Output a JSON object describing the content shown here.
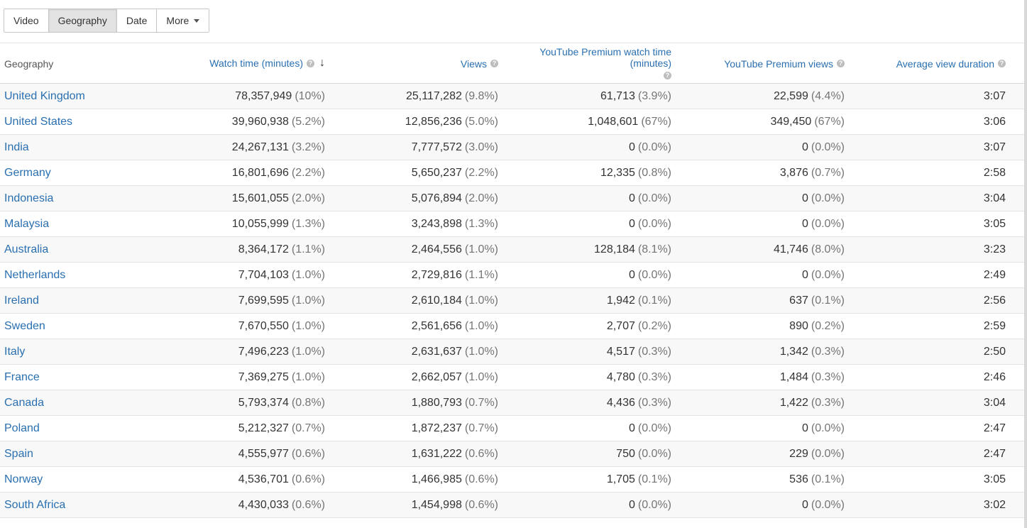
{
  "tabs": [
    {
      "label": "Video",
      "active": false
    },
    {
      "label": "Geography",
      "active": true
    },
    {
      "label": "Date",
      "active": false
    },
    {
      "label": "More",
      "active": false
    }
  ],
  "table": {
    "columns": [
      {
        "label": "Geography",
        "help": false,
        "sort": ""
      },
      {
        "label": "Watch time (minutes)",
        "help": true,
        "sort": "↓"
      },
      {
        "label": "Views",
        "help": true,
        "sort": ""
      },
      {
        "label": "YouTube Premium watch time (minutes)",
        "help": true,
        "sort": ""
      },
      {
        "label": "YouTube Premium views",
        "help": true,
        "sort": ""
      },
      {
        "label": "Average view duration",
        "help": true,
        "sort": ""
      }
    ],
    "rows": [
      {
        "geo": "United Kingdom",
        "watch": "78,357,949",
        "watch_pct": "(10%)",
        "views": "25,117,282",
        "views_pct": "(9.8%)",
        "prem_watch": "61,713",
        "prem_watch_pct": "(3.9%)",
        "prem_views": "22,599",
        "prem_views_pct": "(4.4%)",
        "avg": "3:07"
      },
      {
        "geo": "United States",
        "watch": "39,960,938",
        "watch_pct": "(5.2%)",
        "views": "12,856,236",
        "views_pct": "(5.0%)",
        "prem_watch": "1,048,601",
        "prem_watch_pct": "(67%)",
        "prem_views": "349,450",
        "prem_views_pct": "(67%)",
        "avg": "3:06"
      },
      {
        "geo": "India",
        "watch": "24,267,131",
        "watch_pct": "(3.2%)",
        "views": "7,777,572",
        "views_pct": "(3.0%)",
        "prem_watch": "0",
        "prem_watch_pct": "(0.0%)",
        "prem_views": "0",
        "prem_views_pct": "(0.0%)",
        "avg": "3:07"
      },
      {
        "geo": "Germany",
        "watch": "16,801,696",
        "watch_pct": "(2.2%)",
        "views": "5,650,237",
        "views_pct": "(2.2%)",
        "prem_watch": "12,335",
        "prem_watch_pct": "(0.8%)",
        "prem_views": "3,876",
        "prem_views_pct": "(0.7%)",
        "avg": "2:58"
      },
      {
        "geo": "Indonesia",
        "watch": "15,601,055",
        "watch_pct": "(2.0%)",
        "views": "5,076,894",
        "views_pct": "(2.0%)",
        "prem_watch": "0",
        "prem_watch_pct": "(0.0%)",
        "prem_views": "0",
        "prem_views_pct": "(0.0%)",
        "avg": "3:04"
      },
      {
        "geo": "Malaysia",
        "watch": "10,055,999",
        "watch_pct": "(1.3%)",
        "views": "3,243,898",
        "views_pct": "(1.3%)",
        "prem_watch": "0",
        "prem_watch_pct": "(0.0%)",
        "prem_views": "0",
        "prem_views_pct": "(0.0%)",
        "avg": "3:05"
      },
      {
        "geo": "Australia",
        "watch": "8,364,172",
        "watch_pct": "(1.1%)",
        "views": "2,464,556",
        "views_pct": "(1.0%)",
        "prem_watch": "128,184",
        "prem_watch_pct": "(8.1%)",
        "prem_views": "41,746",
        "prem_views_pct": "(8.0%)",
        "avg": "3:23"
      },
      {
        "geo": "Netherlands",
        "watch": "7,704,103",
        "watch_pct": "(1.0%)",
        "views": "2,729,816",
        "views_pct": "(1.1%)",
        "prem_watch": "0",
        "prem_watch_pct": "(0.0%)",
        "prem_views": "0",
        "prem_views_pct": "(0.0%)",
        "avg": "2:49"
      },
      {
        "geo": "Ireland",
        "watch": "7,699,595",
        "watch_pct": "(1.0%)",
        "views": "2,610,184",
        "views_pct": "(1.0%)",
        "prem_watch": "1,942",
        "prem_watch_pct": "(0.1%)",
        "prem_views": "637",
        "prem_views_pct": "(0.1%)",
        "avg": "2:56"
      },
      {
        "geo": "Sweden",
        "watch": "7,670,550",
        "watch_pct": "(1.0%)",
        "views": "2,561,656",
        "views_pct": "(1.0%)",
        "prem_watch": "2,707",
        "prem_watch_pct": "(0.2%)",
        "prem_views": "890",
        "prem_views_pct": "(0.2%)",
        "avg": "2:59"
      },
      {
        "geo": "Italy",
        "watch": "7,496,223",
        "watch_pct": "(1.0%)",
        "views": "2,631,637",
        "views_pct": "(1.0%)",
        "prem_watch": "4,517",
        "prem_watch_pct": "(0.3%)",
        "prem_views": "1,342",
        "prem_views_pct": "(0.3%)",
        "avg": "2:50"
      },
      {
        "geo": "France",
        "watch": "7,369,275",
        "watch_pct": "(1.0%)",
        "views": "2,662,057",
        "views_pct": "(1.0%)",
        "prem_watch": "4,780",
        "prem_watch_pct": "(0.3%)",
        "prem_views": "1,484",
        "prem_views_pct": "(0.3%)",
        "avg": "2:46"
      },
      {
        "geo": "Canada",
        "watch": "5,793,374",
        "watch_pct": "(0.8%)",
        "views": "1,880,793",
        "views_pct": "(0.7%)",
        "prem_watch": "4,436",
        "prem_watch_pct": "(0.3%)",
        "prem_views": "1,422",
        "prem_views_pct": "(0.3%)",
        "avg": "3:04"
      },
      {
        "geo": "Poland",
        "watch": "5,212,327",
        "watch_pct": "(0.7%)",
        "views": "1,872,237",
        "views_pct": "(0.7%)",
        "prem_watch": "0",
        "prem_watch_pct": "(0.0%)",
        "prem_views": "0",
        "prem_views_pct": "(0.0%)",
        "avg": "2:47"
      },
      {
        "geo": "Spain",
        "watch": "4,555,977",
        "watch_pct": "(0.6%)",
        "views": "1,631,222",
        "views_pct": "(0.6%)",
        "prem_watch": "750",
        "prem_watch_pct": "(0.0%)",
        "prem_views": "229",
        "prem_views_pct": "(0.0%)",
        "avg": "2:47"
      },
      {
        "geo": "Norway",
        "watch": "4,536,701",
        "watch_pct": "(0.6%)",
        "views": "1,466,985",
        "views_pct": "(0.6%)",
        "prem_watch": "1,705",
        "prem_watch_pct": "(0.1%)",
        "prem_views": "536",
        "prem_views_pct": "(0.1%)",
        "avg": "3:05"
      },
      {
        "geo": "South Africa",
        "watch": "4,430,033",
        "watch_pct": "(0.6%)",
        "views": "1,454,998",
        "views_pct": "(0.6%)",
        "prem_watch": "0",
        "prem_watch_pct": "(0.0%)",
        "prem_views": "0",
        "prem_views_pct": "(0.0%)",
        "avg": "3:02"
      }
    ]
  }
}
